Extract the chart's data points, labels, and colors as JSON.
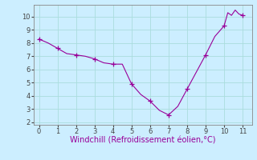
{
  "x": [
    0,
    0.5,
    1,
    1.5,
    2,
    2.5,
    3,
    3.5,
    4,
    4.5,
    5,
    5.5,
    6,
    6.5,
    7,
    7.5,
    8,
    8.5,
    9,
    9.5,
    10,
    10.2,
    10.4,
    10.6,
    10.8,
    11
  ],
  "y": [
    8.3,
    8.0,
    7.6,
    7.2,
    7.1,
    7.0,
    6.8,
    6.5,
    6.4,
    6.4,
    4.9,
    4.1,
    3.6,
    2.9,
    2.55,
    3.2,
    4.5,
    5.8,
    7.1,
    8.5,
    9.3,
    10.3,
    10.1,
    10.5,
    10.2,
    10.1
  ],
  "marker_x": [
    0,
    1,
    2,
    3,
    4,
    5,
    6,
    7,
    8,
    9,
    10,
    11
  ],
  "marker_y": [
    8.3,
    7.6,
    7.1,
    6.8,
    6.4,
    4.9,
    3.6,
    2.55,
    4.5,
    7.1,
    9.3,
    10.1
  ],
  "line_color": "#990099",
  "marker_color": "#990099",
  "bg_color": "#cceeff",
  "grid_color": "#aadddd",
  "xlabel": "Windchill (Refroidissement éolien,°C)",
  "xlim": [
    -0.3,
    11.5
  ],
  "ylim": [
    1.8,
    10.9
  ],
  "xticks": [
    0,
    1,
    2,
    3,
    4,
    5,
    6,
    7,
    8,
    9,
    10,
    11
  ],
  "yticks": [
    2,
    3,
    4,
    5,
    6,
    7,
    8,
    9,
    10
  ],
  "xlabel_fontsize": 7,
  "tick_fontsize": 6,
  "marker_size": 4,
  "linewidth": 0.8
}
